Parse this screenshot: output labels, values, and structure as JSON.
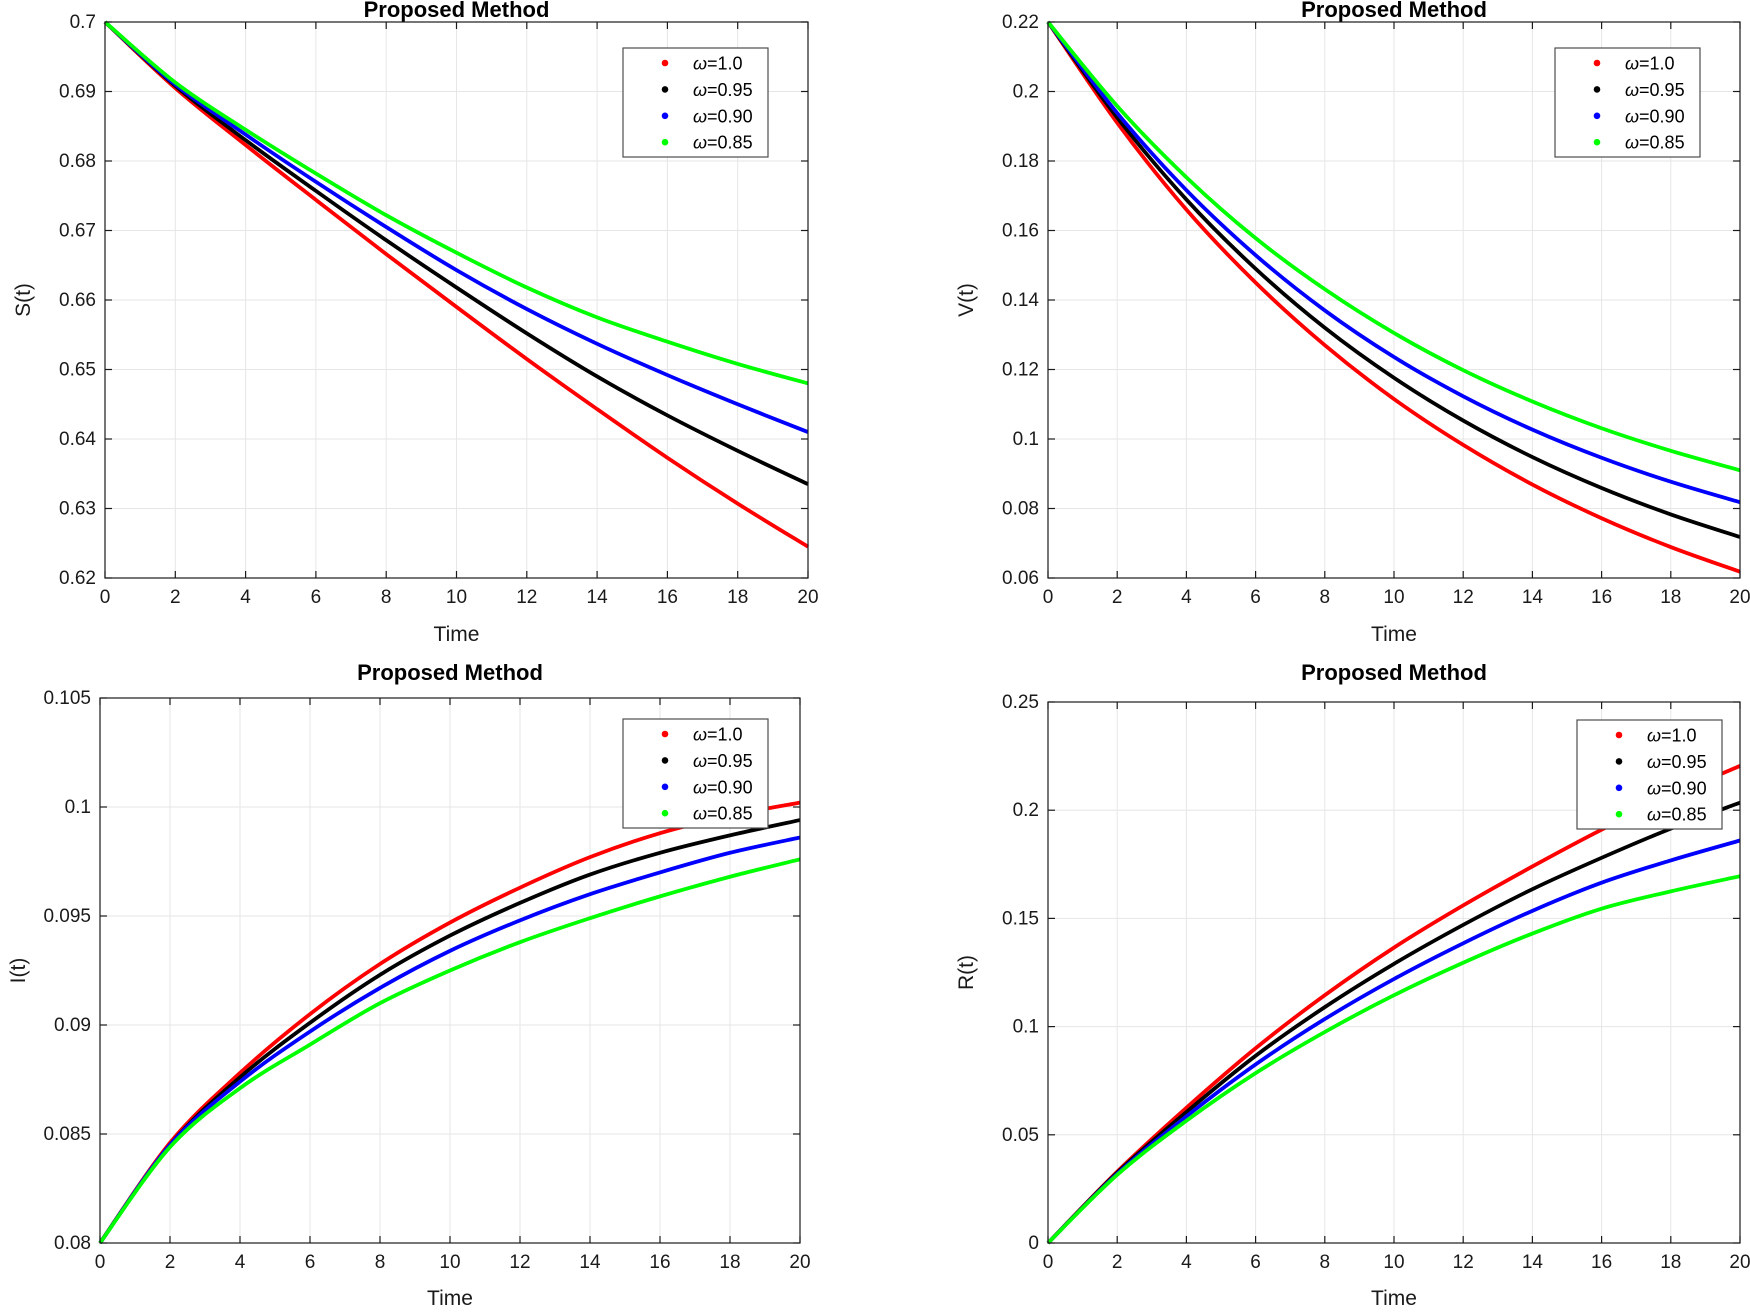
{
  "figure": {
    "background": "#ffffff",
    "axis_color": "#1a1a1a",
    "grid_color": "#e6e6e6",
    "legend_border_color": "#4d4d4d",
    "line_width": 3.8,
    "tick_length": 7
  },
  "legend": {
    "position": "top-right",
    "entries": [
      {
        "label": "ω=1.0",
        "color": "#ff0000",
        "marker": "dot"
      },
      {
        "label": "ω=0.95",
        "color": "#000000",
        "marker": "dot"
      },
      {
        "label": "ω=0.90",
        "color": "#0000ff",
        "marker": "dot"
      },
      {
        "label": "ω=0.85",
        "color": "#00ff00",
        "marker": "dot"
      }
    ]
  },
  "chart_data": [
    {
      "type": "line",
      "title": "Proposed Method",
      "xlabel": "Time",
      "ylabel": "S(t)",
      "xlim": [
        0,
        20
      ],
      "ylim": [
        0.62,
        0.7
      ],
      "grid": true,
      "legend_position": "top-right",
      "xticks": [
        0,
        2,
        4,
        6,
        8,
        10,
        12,
        14,
        16,
        18,
        20
      ],
      "xtick_labels": [
        "0",
        "2",
        "4",
        "6",
        "8",
        "10",
        "12",
        "14",
        "16",
        "18",
        "20"
      ],
      "yticks": [
        0.62,
        0.63,
        0.64,
        0.65,
        0.66,
        0.67,
        0.68,
        0.69,
        0.7
      ],
      "ytick_labels": [
        "0.62",
        "0.63",
        "0.64",
        "0.65",
        "0.66",
        "0.67",
        "0.68",
        "0.69",
        "0.7"
      ],
      "x": [
        0,
        2,
        4,
        6,
        8,
        10,
        12,
        14,
        16,
        18,
        20
      ],
      "series": [
        {
          "name": "ω=1.0",
          "color": "#ff0000",
          "values": [
            0.7,
            0.6905,
            0.6823,
            0.6744,
            0.6666,
            0.659,
            0.6515,
            0.6443,
            0.6373,
            0.6307,
            0.6245
          ]
        },
        {
          "name": "ω=0.95",
          "color": "#000000",
          "values": [
            0.7,
            0.6908,
            0.683,
            0.6757,
            0.6686,
            0.6618,
            0.6552,
            0.649,
            0.6434,
            0.6383,
            0.6335
          ]
        },
        {
          "name": "ω=0.90",
          "color": "#0000ff",
          "values": [
            0.7,
            0.691,
            0.6838,
            0.677,
            0.6705,
            0.6643,
            0.6587,
            0.6537,
            0.6492,
            0.645,
            0.641
          ]
        },
        {
          "name": "ω=0.85",
          "color": "#00ff00",
          "values": [
            0.7,
            0.6913,
            0.6845,
            0.6782,
            0.6722,
            0.6668,
            0.6618,
            0.6575,
            0.654,
            0.6508,
            0.648
          ]
        }
      ]
    },
    {
      "type": "line",
      "title": "Proposed Method",
      "xlabel": "Time",
      "ylabel": "V(t)",
      "xlim": [
        0,
        20
      ],
      "ylim": [
        0.06,
        0.22
      ],
      "grid": true,
      "legend_position": "top-right",
      "xticks": [
        0,
        2,
        4,
        6,
        8,
        10,
        12,
        14,
        16,
        18,
        20
      ],
      "xtick_labels": [
        "0",
        "2",
        "4",
        "6",
        "8",
        "10",
        "12",
        "14",
        "16",
        "18",
        "20"
      ],
      "yticks": [
        0.06,
        0.08,
        0.1,
        0.12,
        0.14,
        0.16,
        0.18,
        0.2,
        0.22
      ],
      "ytick_labels": [
        "0.06",
        "0.08",
        "0.1",
        "0.12",
        "0.14",
        "0.16",
        "0.18",
        "0.2",
        "0.22"
      ],
      "x": [
        0,
        2,
        4,
        6,
        8,
        10,
        12,
        14,
        16,
        18,
        20
      ],
      "series": [
        {
          "name": "ω=1.0",
          "color": "#ff0000",
          "values": [
            0.22,
            0.191,
            0.166,
            0.145,
            0.127,
            0.1115,
            0.0983,
            0.0869,
            0.0772,
            0.0689,
            0.0618
          ]
        },
        {
          "name": "ω=0.95",
          "color": "#000000",
          "values": [
            0.22,
            0.1925,
            0.1689,
            0.149,
            0.132,
            0.1176,
            0.1053,
            0.0948,
            0.0859,
            0.0783,
            0.0718
          ]
        },
        {
          "name": "ω=0.90",
          "color": "#0000ff",
          "values": [
            0.22,
            0.1938,
            0.1716,
            0.1529,
            0.137,
            0.1236,
            0.1123,
            0.1027,
            0.0946,
            0.0877,
            0.0818
          ]
        },
        {
          "name": "ω=0.85",
          "color": "#00ff00",
          "values": [
            0.22,
            0.1958,
            0.1753,
            0.1578,
            0.1431,
            0.1305,
            0.1198,
            0.1108,
            0.1031,
            0.0966,
            0.091
          ]
        }
      ]
    },
    {
      "type": "line",
      "title": "Proposed Method",
      "xlabel": "Time",
      "ylabel": "I(t)",
      "xlim": [
        0,
        20
      ],
      "ylim": [
        0.08,
        0.105
      ],
      "grid": true,
      "legend_position": "top-right",
      "xticks": [
        0,
        2,
        4,
        6,
        8,
        10,
        12,
        14,
        16,
        18,
        20
      ],
      "xtick_labels": [
        "0",
        "2",
        "4",
        "6",
        "8",
        "10",
        "12",
        "14",
        "16",
        "18",
        "20"
      ],
      "yticks": [
        0.08,
        0.085,
        0.09,
        0.095,
        0.1,
        0.105
      ],
      "ytick_labels": [
        "0.08",
        "0.085",
        "0.09",
        "0.095",
        "0.1",
        "0.105"
      ],
      "x": [
        0,
        2,
        4,
        6,
        8,
        10,
        12,
        14,
        16,
        18,
        20
      ],
      "series": [
        {
          "name": "ω=1.0",
          "color": "#ff0000",
          "values": [
            0.08,
            0.0846,
            0.0878,
            0.0905,
            0.0928,
            0.0947,
            0.0963,
            0.0977,
            0.0988,
            0.0996,
            0.1002
          ]
        },
        {
          "name": "ω=0.95",
          "color": "#000000",
          "values": [
            0.08,
            0.0845,
            0.0876,
            0.0901,
            0.0923,
            0.0941,
            0.0956,
            0.0969,
            0.0979,
            0.0987,
            0.0994
          ]
        },
        {
          "name": "ω=0.90",
          "color": "#0000ff",
          "values": [
            0.08,
            0.0845,
            0.0874,
            0.0897,
            0.0917,
            0.0934,
            0.0948,
            0.096,
            0.097,
            0.0979,
            0.0986
          ]
        },
        {
          "name": "ω=0.85",
          "color": "#00ff00",
          "values": [
            0.08,
            0.0844,
            0.0871,
            0.0891,
            0.091,
            0.0925,
            0.0938,
            0.0949,
            0.0959,
            0.0968,
            0.0976
          ]
        }
      ]
    },
    {
      "type": "line",
      "title": "Proposed Method",
      "xlabel": "Time",
      "ylabel": "R(t)",
      "xlim": [
        0,
        20
      ],
      "ylim": [
        0,
        0.25
      ],
      "grid": true,
      "legend_position": "top-right",
      "xticks": [
        0,
        2,
        4,
        6,
        8,
        10,
        12,
        14,
        16,
        18,
        20
      ],
      "xtick_labels": [
        "0",
        "2",
        "4",
        "6",
        "8",
        "10",
        "12",
        "14",
        "16",
        "18",
        "20"
      ],
      "yticks": [
        0,
        0.05,
        0.1,
        0.15,
        0.2,
        0.25
      ],
      "ytick_labels": [
        "0",
        "0.05",
        "0.1",
        "0.15",
        "0.2",
        "0.25"
      ],
      "x": [
        0,
        2,
        4,
        6,
        8,
        10,
        12,
        14,
        16,
        18,
        20
      ],
      "series": [
        {
          "name": "ω=1.0",
          "color": "#ff0000",
          "values": [
            0,
            0.033,
            0.0625,
            0.09,
            0.1145,
            0.1365,
            0.156,
            0.174,
            0.191,
            0.2065,
            0.2205
          ]
        },
        {
          "name": "ω=0.95",
          "color": "#000000",
          "values": [
            0,
            0.0325,
            0.0605,
            0.0865,
            0.109,
            0.129,
            0.147,
            0.1635,
            0.178,
            0.1915,
            0.2035
          ]
        },
        {
          "name": "ω=0.90",
          "color": "#0000ff",
          "values": [
            0,
            0.032,
            0.0585,
            0.0825,
            0.1035,
            0.122,
            0.1385,
            0.1535,
            0.1665,
            0.1768,
            0.186
          ]
        },
        {
          "name": "ω=0.85",
          "color": "#00ff00",
          "values": [
            0,
            0.0315,
            0.0565,
            0.0785,
            0.0975,
            0.1145,
            0.1295,
            0.143,
            0.1545,
            0.1625,
            0.1695
          ]
        }
      ]
    }
  ]
}
